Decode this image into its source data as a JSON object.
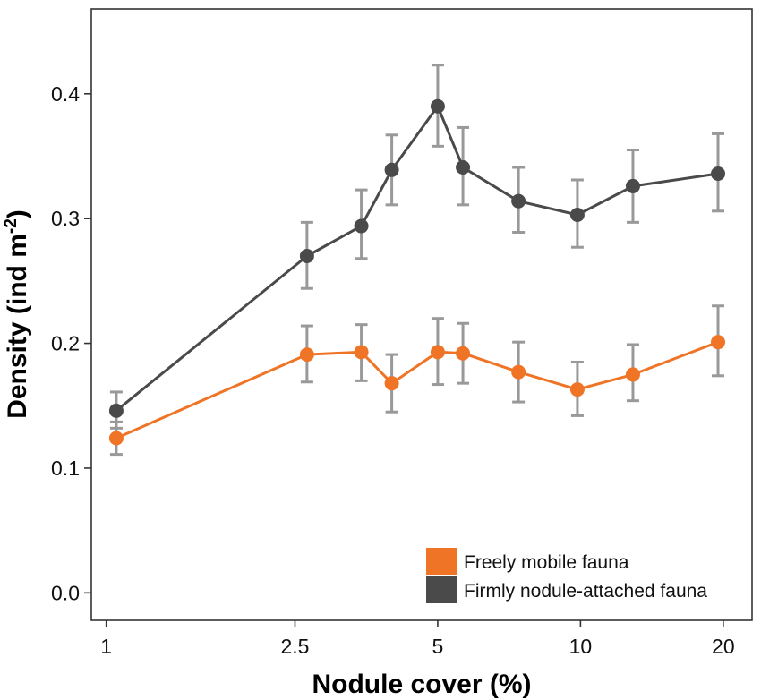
{
  "chart_data": {
    "type": "line",
    "xlabel": "Nodule cover (%)",
    "ylabel_main": "Density (ind m",
    "ylabel_sup": "-2",
    "ylabel_close": ")",
    "x_scale": "log",
    "xlim": [
      0.93,
      23
    ],
    "ylim": [
      -0.022,
      0.468
    ],
    "x_ticks": [
      {
        "value": 1,
        "label": "1"
      },
      {
        "value": 2.5,
        "label": "2.5"
      },
      {
        "value": 5,
        "label": "5"
      },
      {
        "value": 10,
        "label": "10"
      },
      {
        "value": 20,
        "label": "20"
      }
    ],
    "y_ticks": [
      {
        "value": 0.0,
        "label": "0.0"
      },
      {
        "value": 0.1,
        "label": "0.1"
      },
      {
        "value": 0.2,
        "label": "0.2"
      },
      {
        "value": 0.3,
        "label": "0.3"
      },
      {
        "value": 0.4,
        "label": "0.4"
      }
    ],
    "grid": false,
    "legend_position": "bottom-right",
    "error_bar_color": "#999999",
    "series": [
      {
        "name": "Freely mobile fauna",
        "color": "#F07426",
        "x": [
          1.05,
          2.65,
          3.45,
          4.0,
          5.0,
          5.65,
          7.4,
          9.85,
          12.9,
          19.5
        ],
        "y": [
          0.124,
          0.191,
          0.193,
          0.168,
          0.193,
          0.192,
          0.177,
          0.163,
          0.175,
          0.201
        ],
        "err_low": [
          0.111,
          0.169,
          0.17,
          0.145,
          0.167,
          0.168,
          0.153,
          0.142,
          0.154,
          0.174
        ],
        "err_high": [
          0.137,
          0.214,
          0.215,
          0.191,
          0.22,
          0.216,
          0.201,
          0.185,
          0.199,
          0.23
        ]
      },
      {
        "name": "Firmly nodule-attached fauna",
        "color": "#4A4A4A",
        "x": [
          1.05,
          2.65,
          3.45,
          4.0,
          5.0,
          5.65,
          7.4,
          9.85,
          12.9,
          19.5
        ],
        "y": [
          0.146,
          0.27,
          0.294,
          0.339,
          0.39,
          0.341,
          0.314,
          0.303,
          0.326,
          0.336
        ],
        "err_low": [
          0.132,
          0.244,
          0.268,
          0.311,
          0.358,
          0.311,
          0.289,
          0.277,
          0.297,
          0.306
        ],
        "err_high": [
          0.161,
          0.297,
          0.323,
          0.367,
          0.423,
          0.373,
          0.341,
          0.331,
          0.355,
          0.368
        ]
      }
    ]
  }
}
